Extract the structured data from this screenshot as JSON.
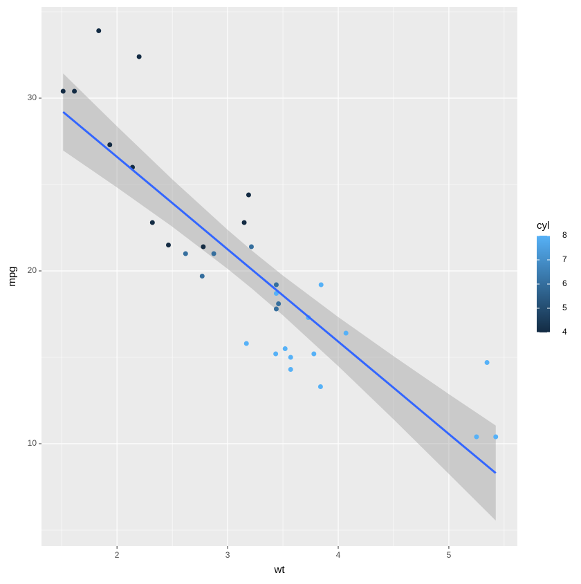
{
  "chart_data": {
    "type": "scatter",
    "x_label": "wt",
    "y_label": "mpg",
    "xlim": [
      1.3175,
      5.6195
    ],
    "ylim": [
      4.08,
      35.28
    ],
    "xticks": [
      2,
      3,
      4,
      5
    ],
    "yticks": [
      10,
      20,
      30
    ],
    "xminor_ticks": [
      1.5,
      2.5,
      3.5,
      4.5,
      5.5
    ],
    "yminor_ticks": [
      5,
      15,
      25,
      35
    ],
    "grid": true,
    "points": {
      "x": [
        2.62,
        2.875,
        2.32,
        3.215,
        3.44,
        3.46,
        3.57,
        3.19,
        3.15,
        3.44,
        3.44,
        4.07,
        3.73,
        3.78,
        5.25,
        5.424,
        5.345,
        2.2,
        1.615,
        1.835,
        2.465,
        3.52,
        3.435,
        3.84,
        3.845,
        1.935,
        2.14,
        1.513,
        3.17,
        2.77,
        3.57,
        2.78
      ],
      "y": [
        21.0,
        21.0,
        22.8,
        21.4,
        18.7,
        18.1,
        14.3,
        24.4,
        22.8,
        19.2,
        17.8,
        16.4,
        17.3,
        15.2,
        10.4,
        10.4,
        14.7,
        32.4,
        30.4,
        33.9,
        21.5,
        15.5,
        15.2,
        13.3,
        19.2,
        27.3,
        26.0,
        30.4,
        15.8,
        19.7,
        15.0,
        21.4
      ],
      "cyl": [
        6,
        6,
        4,
        6,
        8,
        6,
        8,
        4,
        4,
        6,
        6,
        8,
        8,
        8,
        8,
        8,
        8,
        4,
        4,
        4,
        4,
        8,
        8,
        8,
        8,
        4,
        4,
        4,
        8,
        6,
        8,
        4
      ]
    },
    "fit": {
      "color": "#3366ff",
      "band_color": "#999999",
      "x": [
        1.513,
        2.0,
        2.5,
        3.0,
        3.217,
        3.5,
        4.0,
        4.5,
        5.0,
        5.424
      ],
      "y": [
        29.2,
        26.6,
        23.93,
        21.25,
        20.09,
        18.58,
        15.91,
        13.24,
        10.56,
        8.3
      ],
      "lower": [
        26.97,
        24.83,
        22.56,
        20.12,
        18.99,
        17.43,
        14.49,
        11.41,
        8.25,
        5.55
      ],
      "upper": [
        31.43,
        28.37,
        25.3,
        22.38,
        21.19,
        19.73,
        17.33,
        15.07,
        12.87,
        11.05
      ]
    },
    "legend": {
      "title": "cyl",
      "ticks": [
        4,
        5,
        6,
        7,
        8
      ],
      "lim": [
        4,
        8
      ],
      "low": "#132b43",
      "high": "#56b1f7"
    }
  }
}
